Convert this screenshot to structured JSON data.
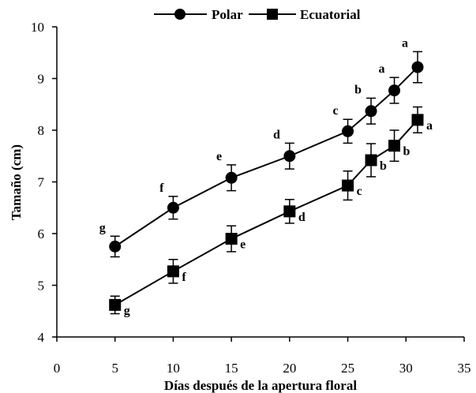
{
  "chart_data": {
    "type": "line",
    "title": "",
    "xlabel": "Días después de la apertura floral",
    "ylabel": "Tamaño (cm)",
    "xlim": [
      0,
      35
    ],
    "ylim": [
      4,
      10
    ],
    "xticks": [
      "0",
      "5",
      "10",
      "15",
      "20",
      "25",
      "30",
      "35"
    ],
    "yticks": [
      "4",
      "5",
      "6",
      "7",
      "8",
      "9",
      "10"
    ],
    "grid": false,
    "legend_position": "top-center",
    "x": [
      5,
      10,
      15,
      20,
      25,
      27,
      29,
      31
    ],
    "series": [
      {
        "name": "Polar",
        "marker": "circle",
        "color": "#000000",
        "values": [
          5.75,
          6.5,
          7.08,
          7.5,
          7.98,
          8.37,
          8.77,
          9.22
        ],
        "errors": [
          0.2,
          0.22,
          0.25,
          0.25,
          0.23,
          0.25,
          0.25,
          0.3
        ],
        "letters": [
          "g",
          "f",
          "e",
          "d",
          "c",
          "b",
          "a",
          "a"
        ]
      },
      {
        "name": "Ecuatorial",
        "marker": "square",
        "color": "#000000",
        "values": [
          4.62,
          5.27,
          5.9,
          6.43,
          6.93,
          7.42,
          7.7,
          8.2
        ],
        "errors": [
          0.17,
          0.23,
          0.25,
          0.23,
          0.28,
          0.32,
          0.3,
          0.25
        ],
        "letters": [
          "g",
          "f",
          "e",
          "d",
          "c",
          "b",
          "b",
          "a"
        ]
      }
    ]
  }
}
